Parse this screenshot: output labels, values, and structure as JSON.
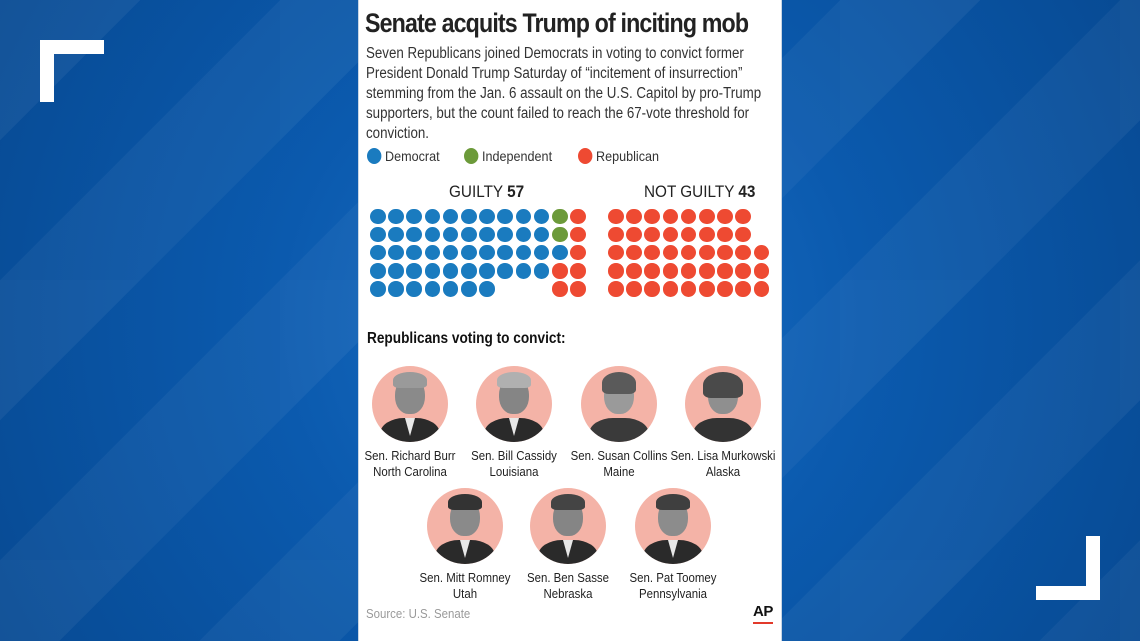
{
  "title": "Senate acquits Trump of inciting mob",
  "subtitle": "Seven Republicans joined Democrats in voting to convict former President Donald Trump Saturday of “incitement of insurrection” stemming from the Jan. 6 assault on the U.S. Capitol by pro-Trump supporters, but the count failed to reach the 67-vote threshold for conviction.",
  "legend": [
    {
      "label": "Democrat",
      "color": "#1a7bbf"
    },
    {
      "label": "Independent",
      "color": "#6c9a3a"
    },
    {
      "label": "Republican",
      "color": "#ee4a32"
    }
  ],
  "votes": {
    "guilty": {
      "label": "GUILTY",
      "count": "57",
      "democrat": 48,
      "independent": 2,
      "republican": 7
    },
    "not_guilty": {
      "label": "NOT GUILTY",
      "count": "43",
      "republican": 43
    }
  },
  "section_heading": "Republicans voting to convict:",
  "senators": [
    {
      "name": "Sen. Richard Burr",
      "state": "North Carolina"
    },
    {
      "name": "Sen. Bill Cassidy",
      "state": "Louisiana"
    },
    {
      "name": "Sen. Susan Collins",
      "state": "Maine"
    },
    {
      "name": "Sen. Lisa Murkowski",
      "state": "Alaska"
    },
    {
      "name": "Sen. Mitt Romney",
      "state": "Utah"
    },
    {
      "name": "Sen. Ben Sasse",
      "state": "Nebraska"
    },
    {
      "name": "Sen. Pat Toomey",
      "state": "Pennsylvania"
    }
  ],
  "source": "Source: U.S. Senate",
  "logo": "AP",
  "colors": {
    "democrat": "#1a7bbf",
    "independent": "#6c9a3a",
    "republican": "#ee4a32",
    "portrait_bg": "#f4b3a7"
  }
}
